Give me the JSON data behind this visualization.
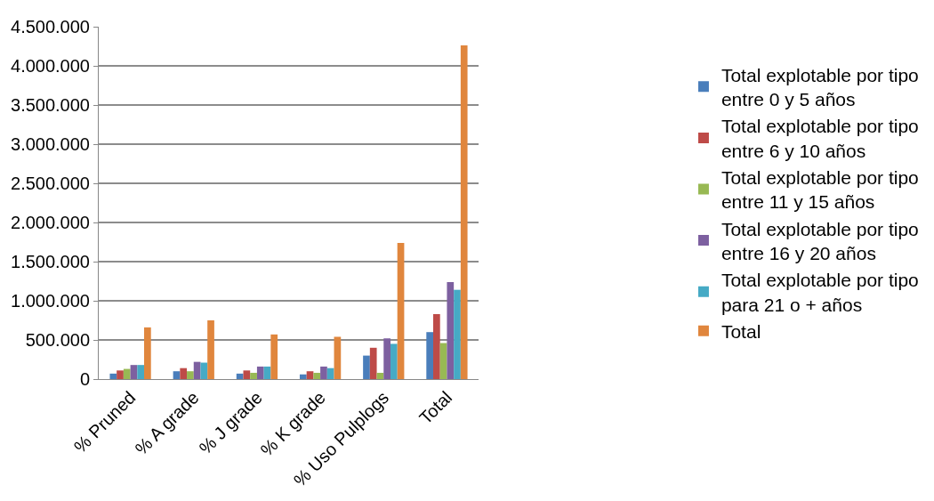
{
  "chart_data": {
    "type": "bar",
    "categories": [
      "% Pruned",
      "% A grade",
      "% J grade",
      "% K grade",
      "% Uso Pulplogs",
      "Total"
    ],
    "series": [
      {
        "name": "Total explotable por tipo entre 0 y 5 años",
        "color": "#4a7ebb",
        "values": [
          70000,
          100000,
          70000,
          60000,
          300000,
          600000
        ]
      },
      {
        "name": "Total explotable por tipo entre 6 y 10 años",
        "color": "#be4b48",
        "values": [
          110000,
          140000,
          110000,
          100000,
          400000,
          830000
        ]
      },
      {
        "name": "Total explotable por tipo entre 11 y 15 años",
        "color": "#98b954",
        "values": [
          130000,
          100000,
          80000,
          80000,
          80000,
          460000
        ]
      },
      {
        "name": "Total explotable por tipo entre 16 y 20 años",
        "color": "#7d60a0",
        "values": [
          180000,
          220000,
          160000,
          160000,
          520000,
          1240000
        ]
      },
      {
        "name": "Total explotable por tipo para 21 o + años",
        "color": "#46aac5",
        "values": [
          180000,
          210000,
          160000,
          140000,
          450000,
          1140000
        ]
      },
      {
        "name": "Total",
        "color": "#e0863d",
        "values": [
          660000,
          750000,
          570000,
          540000,
          1740000,
          4260000
        ]
      }
    ],
    "ylim": [
      0,
      4500000
    ],
    "yticks": [
      {
        "value": 0,
        "label": "0"
      },
      {
        "value": 500000,
        "label": "500.000"
      },
      {
        "value": 1000000,
        "label": "1.000.000"
      },
      {
        "value": 1500000,
        "label": "1.500.000"
      },
      {
        "value": 2000000,
        "label": "2.000.000"
      },
      {
        "value": 2500000,
        "label": "2.500.000"
      },
      {
        "value": 3000000,
        "label": "3.000.000"
      },
      {
        "value": 3500000,
        "label": "3.500.000"
      },
      {
        "value": 4000000,
        "label": "4.000.000"
      },
      {
        "value": 4500000,
        "label": "4.500.000"
      }
    ],
    "grid": "y",
    "legend": "right"
  }
}
